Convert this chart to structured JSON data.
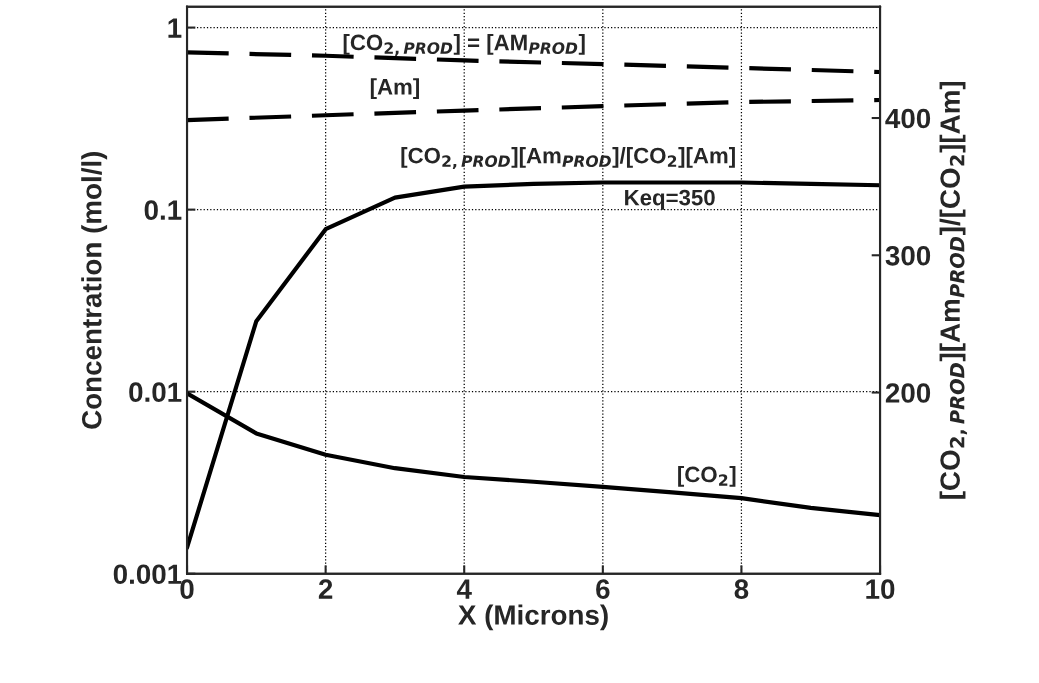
{
  "chart_data": {
    "type": "line",
    "xlabel": "X (Microns)",
    "ylabel": "Concentration (mol/l)",
    "y2label": "[CO$_{2,PROD}$][Am$_{PROD}$]/[CO$_{2}$][Am]",
    "x": [
      0,
      1,
      2,
      3,
      4,
      5,
      6,
      7,
      8,
      9,
      10
    ],
    "series": [
      {
        "name": "[CO$_{2,PROD}$] = [AM$_{PROD}$]",
        "color": "#000000",
        "line_style": "dashed",
        "x": [
          0,
          2,
          4,
          6,
          8,
          10
        ],
        "values": [
          0.73,
          0.7,
          0.66,
          0.63,
          0.6,
          0.57
        ]
      },
      {
        "name": "[Am]",
        "color": "#000000",
        "line_style": "dashed",
        "x": [
          0,
          2,
          4,
          6,
          8,
          10
        ],
        "values": [
          0.31,
          0.33,
          0.35,
          0.37,
          0.39,
          0.4
        ]
      },
      {
        "name": "[CO$_{2,PROD}$][Am$_{PROD}$]/[CO$_{2}$][Am]",
        "color": "#000000",
        "line_style": "solid",
        "axis": "y2",
        "values": [
          87,
          252,
          319,
          342,
          350,
          352,
          353,
          353,
          353,
          352,
          351
        ]
      },
      {
        "name": "[CO$_{2}$]",
        "color": "#000000",
        "line_style": "solid",
        "values": [
          0.0098,
          0.0059,
          0.0045,
          0.0038,
          0.0034,
          0.0032,
          0.003,
          0.0028,
          0.0026,
          0.0023,
          0.0021
        ]
      }
    ],
    "annotations": [
      "Keq=350"
    ],
    "log": "y",
    "xlim": [
      0,
      10
    ],
    "xticks": [
      0,
      2,
      4,
      6,
      8,
      10
    ],
    "ylim": [
      0.001,
      1.3
    ],
    "yticks": [
      0.001,
      0.01,
      0.1,
      1
    ],
    "y2lim": [
      68,
      481
    ],
    "y2ticks": [
      200,
      300,
      400
    ],
    "grid": true,
    "marker": "none"
  }
}
